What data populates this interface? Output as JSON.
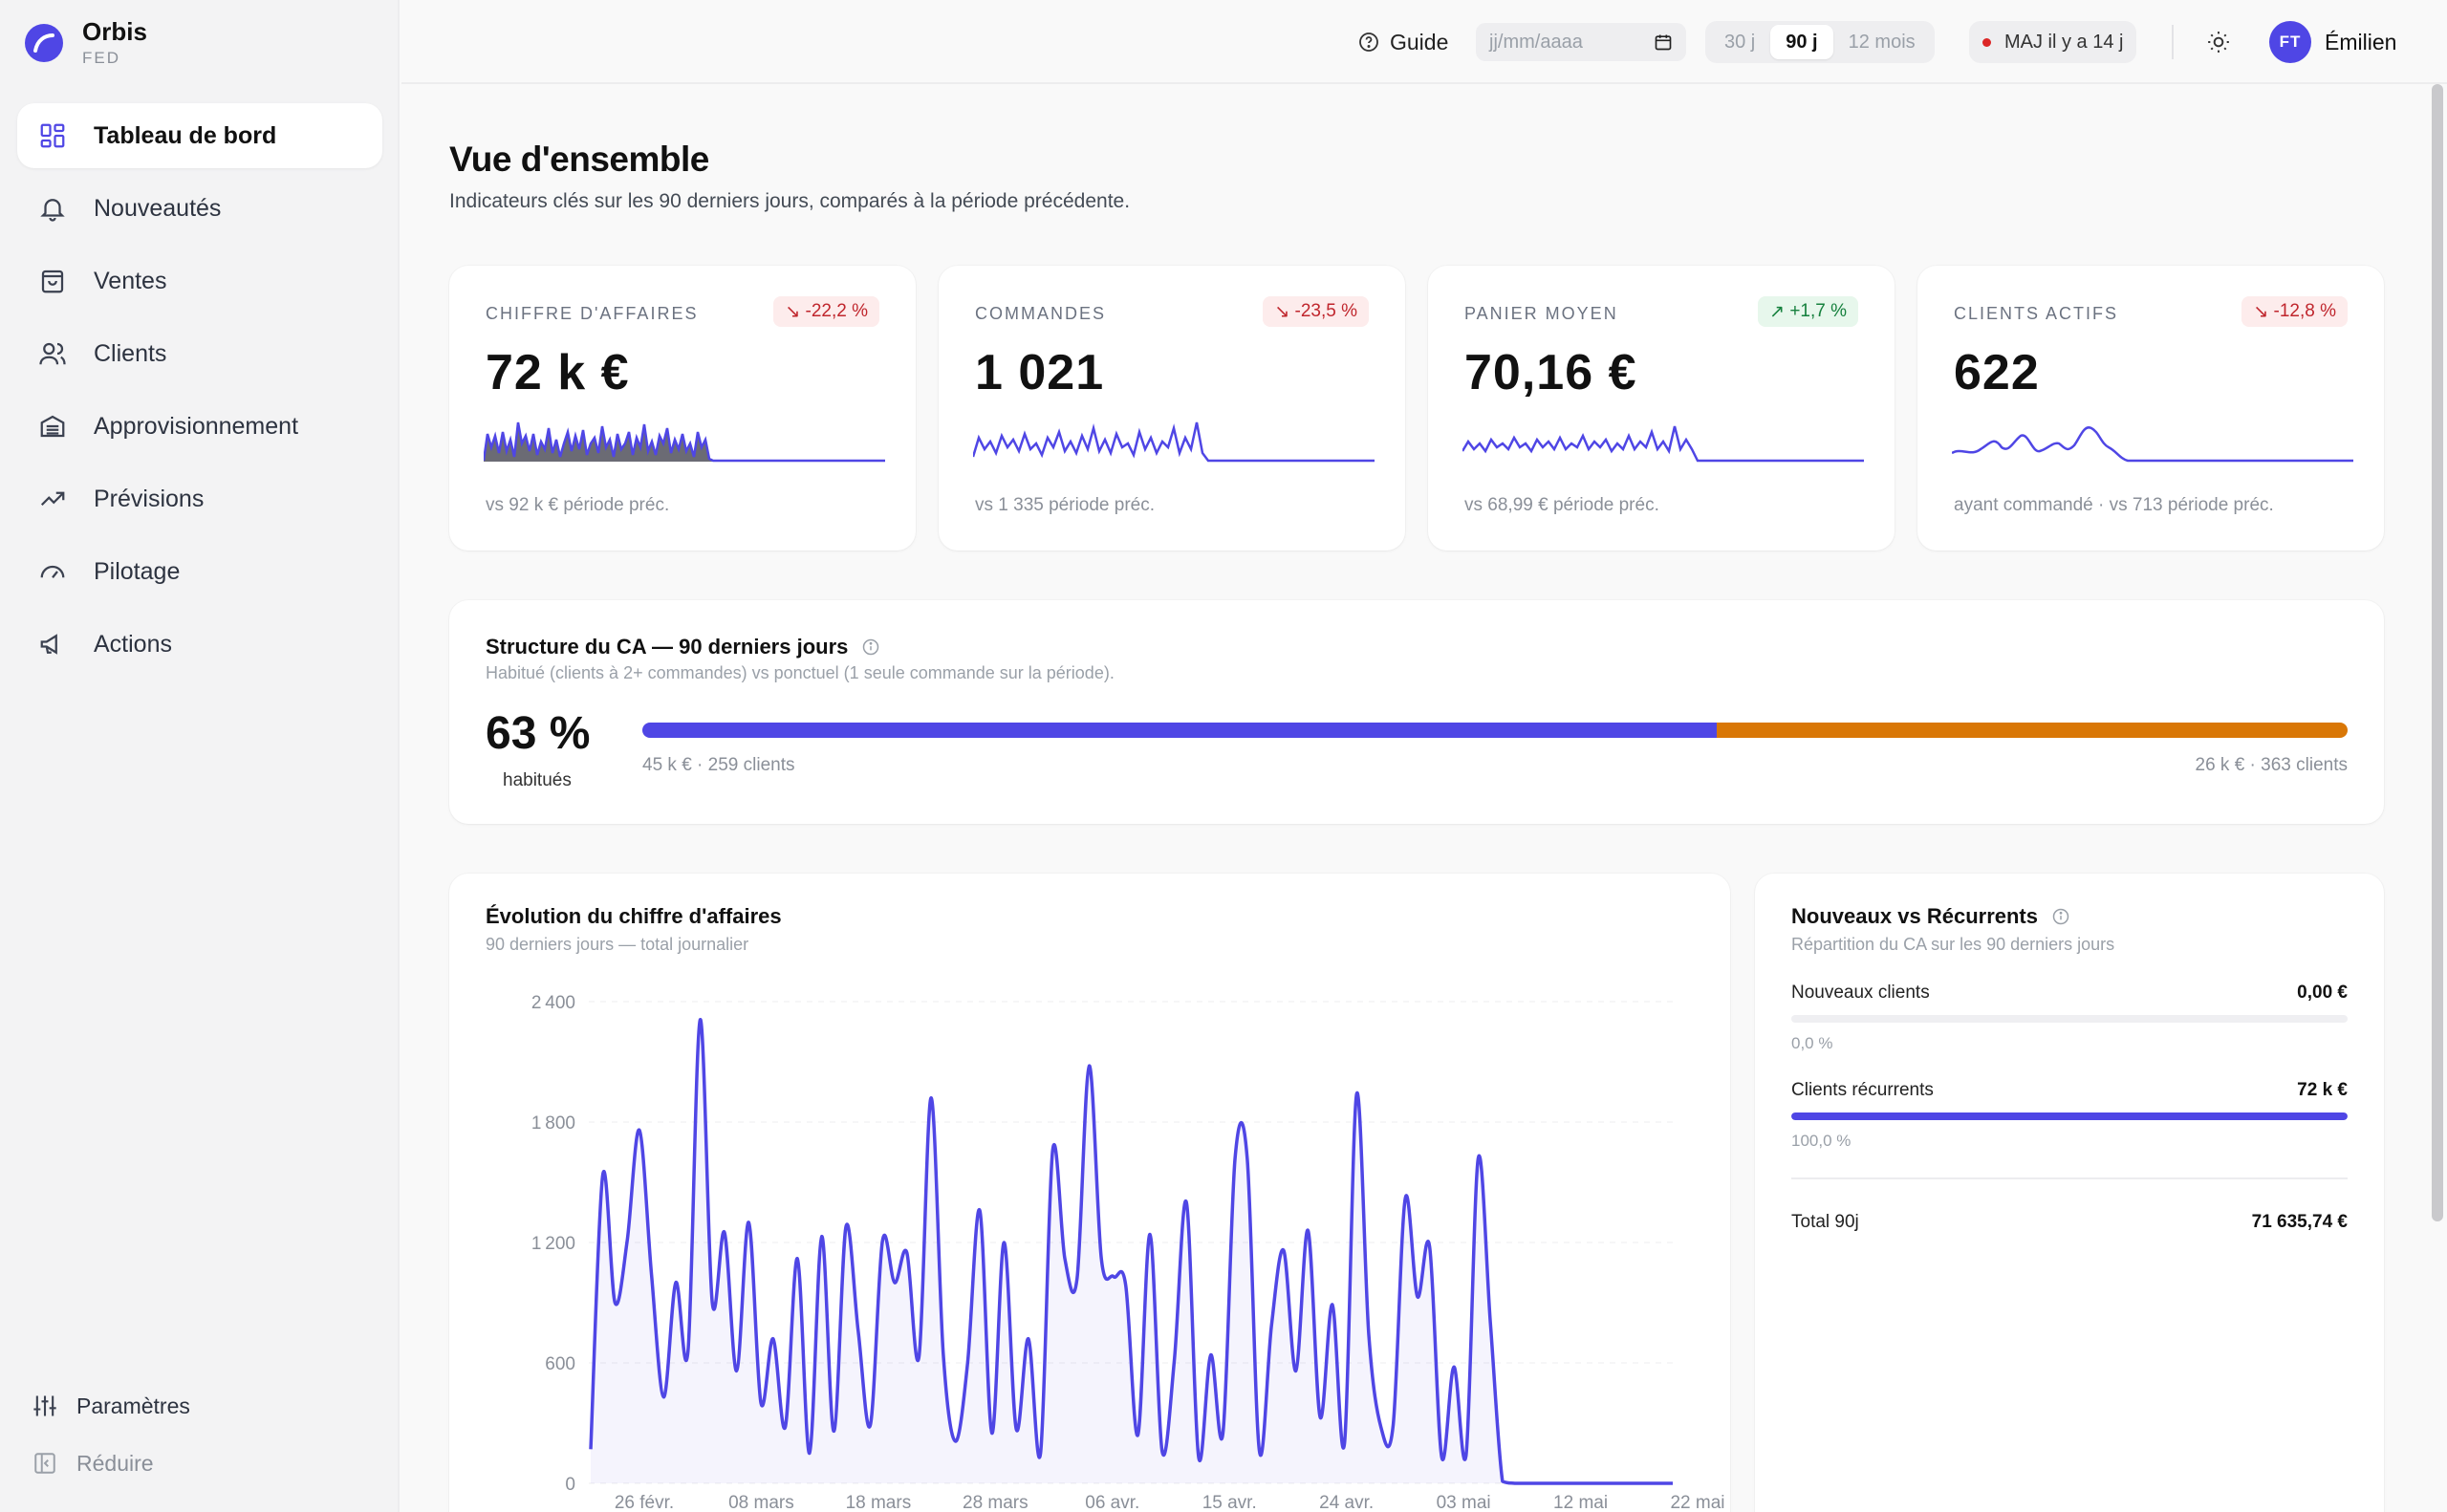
{
  "brand": {
    "name": "Orbis",
    "sub": "FED"
  },
  "sidebar": {
    "items": [
      {
        "label": "Tableau de bord",
        "icon": "dashboard-grid-icon",
        "active": true
      },
      {
        "label": "Nouveautés",
        "icon": "bell-icon"
      },
      {
        "label": "Ventes",
        "icon": "shopping-bag-icon"
      },
      {
        "label": "Clients",
        "icon": "users-icon"
      },
      {
        "label": "Approvisionnement",
        "icon": "inventory-icon"
      },
      {
        "label": "Prévisions",
        "icon": "trend-up-icon"
      },
      {
        "label": "Pilotage",
        "icon": "gauge-icon"
      },
      {
        "label": "Actions",
        "icon": "megaphone-icon"
      }
    ],
    "settings_label": "Paramètres",
    "collapse_label": "Réduire"
  },
  "topbar": {
    "guide_label": "Guide",
    "date_placeholder": "jj/mm/aaaa",
    "periods": [
      "30 j",
      "90 j",
      "12 mois"
    ],
    "period_selected": "90 j",
    "refresh_status": "MAJ il y a 14 j",
    "user_initials": "FT",
    "user_name": "Émilien"
  },
  "page": {
    "title": "Vue d'ensemble",
    "subtitle": "Indicateurs clés sur les 90 derniers jours, comparés à la période précédente."
  },
  "kpis": [
    {
      "label": "CHIFFRE D'AFFAIRES",
      "value": "72 k €",
      "delta": "-22,2 %",
      "trend": "down",
      "foot": "vs 92 k € période préc."
    },
    {
      "label": "COMMANDES",
      "value": "1 021",
      "delta": "-23,5 %",
      "trend": "down",
      "foot": "vs 1 335 période préc."
    },
    {
      "label": "PANIER MOYEN",
      "value": "70,16 €",
      "delta": "+1,7 %",
      "trend": "up",
      "foot": "vs 68,99 € période préc."
    },
    {
      "label": "CLIENTS ACTIFS",
      "value": "622",
      "delta": "-12,8 %",
      "trend": "down",
      "foot": "ayant commandé · vs 713 période préc."
    }
  ],
  "structure": {
    "title": "Structure du CA — 90 derniers jours",
    "subtitle": "Habitué (clients à 2+ commandes) vs ponctuel (1 seule commande sur la période).",
    "percent": "63 %",
    "percent_label": "habitués",
    "habitual_share": 0.63,
    "left_caption": "45 k € · 259 clients",
    "right_caption": "26 k € · 363 clients",
    "colors": {
      "habitual": "#4f46e5",
      "ponctual": "#d97706"
    }
  },
  "evolution": {
    "title": "Évolution du chiffre d'affaires",
    "subtitle": "90 derniers jours — total journalier"
  },
  "nvr": {
    "title": "Nouveaux vs Récurrents",
    "subtitle": "Répartition du CA sur les 90 derniers jours",
    "new_label": "Nouveaux clients",
    "new_value": "0,00 €",
    "new_pct": "0,0 %",
    "new_share": 0,
    "rec_label": "Clients récurrents",
    "rec_value": "72 k €",
    "rec_pct": "100,0 %",
    "rec_share": 1,
    "total_label": "Total 90j",
    "total_value": "71 635,74 €"
  },
  "chart_data": {
    "type": "area",
    "title": "Évolution du chiffre d'affaires",
    "subtitle": "90 derniers jours — total journalier",
    "xlabel": "",
    "ylabel": "",
    "ylim": [
      0,
      2400
    ],
    "yticks": [
      0,
      600,
      1200,
      1800,
      2400
    ],
    "x_tick_labels": [
      "26 févr.",
      "08 mars",
      "18 mars",
      "28 mars",
      "06 avr.",
      "15 avr.",
      "24 avr.",
      "03 mai",
      "12 mai",
      "22 mai"
    ],
    "grid": true,
    "color": "#4f46e5",
    "values": [
      170,
      1540,
      900,
      1210,
      1760,
      1040,
      430,
      1000,
      660,
      2310,
      900,
      1250,
      560,
      1300,
      400,
      720,
      280,
      1120,
      150,
      1230,
      260,
      1280,
      760,
      290,
      1210,
      1000,
      1150,
      630,
      1920,
      640,
      210,
      600,
      1360,
      250,
      1200,
      270,
      720,
      150,
      1660,
      1120,
      1020,
      2080,
      1120,
      1030,
      990,
      240,
      1240,
      160,
      610,
      1400,
      130,
      640,
      250,
      1620,
      1620,
      160,
      790,
      1160,
      560,
      1260,
      330,
      890,
      200,
      1940,
      740,
      280,
      290,
      1420,
      930,
      1180,
      130,
      580,
      140,
      1620,
      800,
      10,
      0,
      0,
      0,
      0,
      0,
      0,
      0,
      0,
      0,
      0,
      0,
      0,
      0,
      0
    ]
  }
}
